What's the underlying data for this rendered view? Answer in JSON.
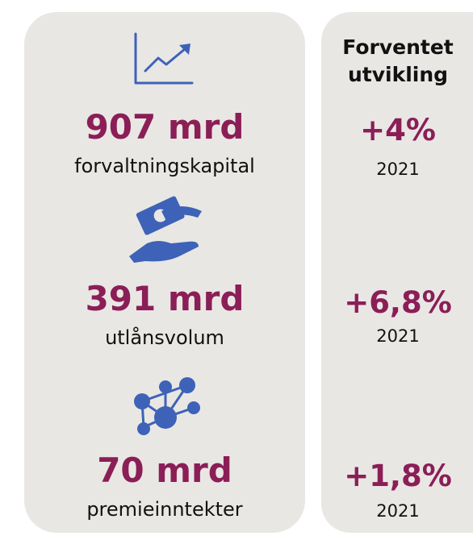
{
  "left": {
    "items": [
      {
        "value": "907 mrd",
        "label": "forvaltningskapital"
      },
      {
        "value": "391 mrd",
        "label": "utlånsvolum"
      },
      {
        "value": "70 mrd",
        "label": "premieinntekter"
      }
    ]
  },
  "right": {
    "heading": [
      "Forventet",
      "utvikling"
    ],
    "items": [
      {
        "change": "+4%",
        "year": "2021"
      },
      {
        "change": "+6,8%",
        "year": "2021"
      },
      {
        "change": "+1,8%",
        "year": "2021"
      }
    ]
  }
}
